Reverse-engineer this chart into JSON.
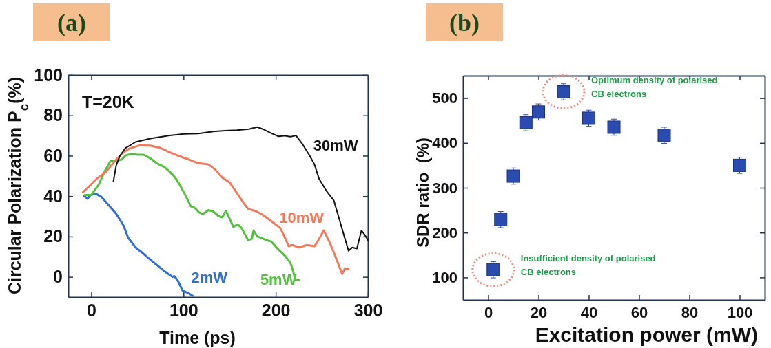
{
  "chart_data": [
    {
      "type": "line",
      "title": "(a)",
      "xlabel": "Time (ps)",
      "ylabel": "Circular Polarization P$_{c}$(%)",
      "xlim": [
        -25,
        300
      ],
      "ylim": [
        -10,
        100
      ],
      "xticks": [
        0,
        100,
        200,
        300
      ],
      "yticks": [
        0,
        20,
        40,
        60,
        80,
        100
      ],
      "annotations": [
        "T=20K"
      ],
      "series": [
        {
          "name": "2mW",
          "color": "#2f6fd0",
          "x": [
            -8,
            -4,
            -1,
            5,
            11,
            18,
            27,
            35,
            40,
            48,
            56,
            62,
            70,
            78,
            85,
            88,
            90,
            94,
            99,
            106,
            110
          ],
          "values": [
            40.2,
            38.7,
            40.5,
            41.2,
            39.6,
            36,
            31.3,
            25.4,
            19.4,
            14.6,
            11.7,
            9.3,
            6.3,
            3.3,
            1,
            0,
            0.4,
            -2,
            -6.8,
            -8.2,
            -9.4
          ]
        },
        {
          "name": "5mW",
          "color": "#55c040",
          "x": [
            -7,
            0,
            8,
            15,
            21,
            27,
            33,
            37,
            44,
            50,
            57,
            64,
            71,
            79,
            85,
            91,
            96,
            103,
            108,
            112,
            117,
            121,
            127,
            132,
            138,
            142,
            146,
            150,
            154,
            159,
            163,
            170,
            174,
            176,
            180,
            184,
            190,
            195,
            203,
            210,
            216,
            219,
            221,
            225
          ],
          "values": [
            40.6,
            40.6,
            45.6,
            52.7,
            57.5,
            57.5,
            58.1,
            60.1,
            61,
            60.5,
            60.5,
            58.7,
            56.3,
            54.5,
            52.1,
            49.2,
            45.6,
            39.6,
            34.9,
            34.3,
            31.9,
            31.1,
            33.1,
            32.5,
            30.1,
            29.5,
            32.7,
            28.9,
            24.8,
            26,
            24.2,
            18.2,
            18.8,
            23,
            20,
            19.4,
            18.2,
            17.6,
            13.5,
            10.5,
            6.9,
            2.7,
            -1.4,
            -1.4
          ]
        },
        {
          "name": "10mW",
          "color": "#f07a5a",
          "x": [
            -9,
            -2,
            6,
            16,
            27,
            35,
            42,
            53,
            64,
            74,
            85,
            95,
            106,
            116,
            127,
            134,
            142,
            150,
            159,
            166,
            170,
            179,
            186,
            195,
            205,
            210,
            214,
            218,
            225,
            234,
            242,
            247,
            252,
            258,
            264,
            270,
            272,
            275,
            279
          ],
          "values": [
            42,
            45,
            48.6,
            52.1,
            58.1,
            61.7,
            63.7,
            65.2,
            65,
            64,
            61.7,
            59.9,
            58.1,
            56.3,
            55.7,
            53.3,
            49.2,
            46.8,
            40.8,
            36.1,
            33.7,
            32.5,
            30.7,
            27.7,
            24.2,
            19.4,
            15.2,
            15.8,
            14.6,
            15.8,
            15.2,
            18.8,
            23,
            17.6,
            11,
            3.9,
            1.5,
            4.2,
            3.9
          ]
        },
        {
          "name": "30mW",
          "color": "#111111",
          "x": [
            24,
            27,
            31,
            37,
            48,
            64,
            85,
            100,
            116,
            132,
            145,
            158,
            171,
            180,
            186,
            195,
            203,
            209,
            216,
            222,
            229,
            237,
            242,
            247,
            255,
            263,
            268,
            274,
            279,
            283,
            288,
            293,
            297,
            300
          ],
          "values": [
            47.4,
            55.1,
            59.9,
            63.8,
            66.8,
            68.5,
            70,
            70.8,
            71,
            72,
            72.4,
            72.7,
            73.2,
            74.2,
            73.2,
            71.2,
            69.6,
            69.9,
            69.4,
            70,
            65.8,
            59.9,
            55.7,
            48.6,
            42.6,
            37.9,
            30.1,
            20.6,
            12.9,
            14.6,
            14,
            23,
            20.6,
            18.2
          ]
        }
      ]
    },
    {
      "type": "scatter",
      "title": "(b)",
      "xlabel": "Excitation power (mW)",
      "ylabel": "SDR ratio  (%)",
      "xlim": [
        -10,
        110
      ],
      "ylim": [
        50,
        550
      ],
      "xticks": [
        0,
        20,
        40,
        60,
        80,
        100
      ],
      "yticks": [
        100,
        200,
        300,
        400,
        500
      ],
      "marker": "square",
      "series": [
        {
          "color": "#2a4bb0",
          "x": [
            2,
            5,
            10,
            15,
            20,
            30,
            40,
            50,
            70,
            100
          ],
          "values": [
            117,
            229,
            326,
            445,
            469,
            514,
            455,
            435,
            417,
            350
          ],
          "errors": [
            18,
            18,
            18,
            18,
            18,
            18,
            18,
            18,
            18,
            18
          ]
        }
      ],
      "annotations": [
        "Optimum density of polarised\nCB electrons",
        "Insufficient density of polarised\nCB electrons"
      ]
    }
  ]
}
